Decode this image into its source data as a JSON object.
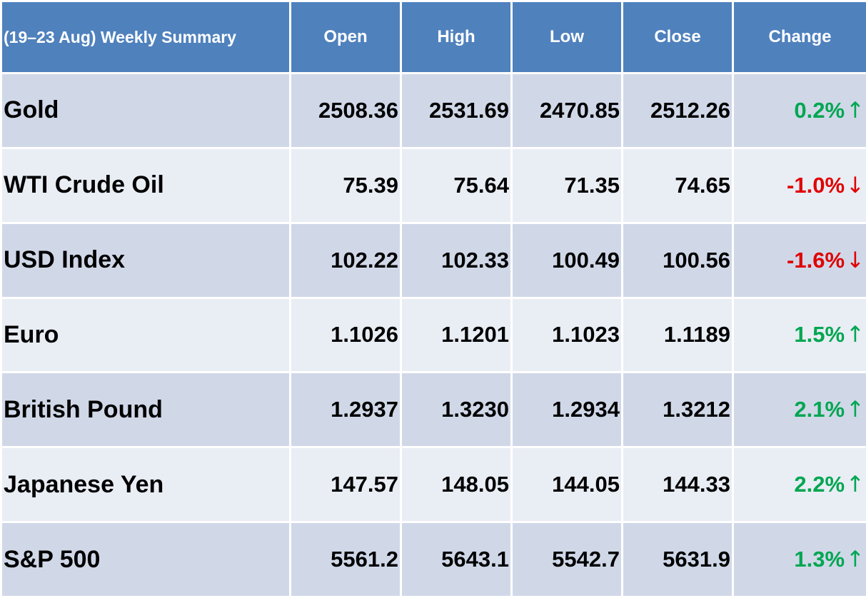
{
  "chart_data": {
    "type": "table",
    "headers": [
      "(19–23  Aug) Weekly Summary",
      "Open",
      "High",
      "Low",
      "Close",
      "Change"
    ],
    "rows": [
      {
        "name": "Gold",
        "open": "2508.36",
        "high": "2531.69",
        "low": "2470.85",
        "close": "2512.26",
        "change": "0.2%",
        "direction": "up"
      },
      {
        "name": "WTI Crude Oil",
        "open": "75.39",
        "high": "75.64",
        "low": "71.35",
        "close": "74.65",
        "change": "-1.0%",
        "direction": "down"
      },
      {
        "name": "USD Index",
        "open": "102.22",
        "high": "102.33",
        "low": "100.49",
        "close": "100.56",
        "change": "-1.6%",
        "direction": "down"
      },
      {
        "name": "Euro",
        "open": "1.1026",
        "high": "1.1201",
        "low": "1.1023",
        "close": "1.1189",
        "change": "1.5%",
        "direction": "up"
      },
      {
        "name": "British Pound",
        "open": "1.2937",
        "high": "1.3230",
        "low": "1.2934",
        "close": "1.3212",
        "change": "2.1%",
        "direction": "up"
      },
      {
        "name": "Japanese Yen",
        "open": "147.57",
        "high": "148.05",
        "low": "144.05",
        "close": "144.33",
        "change": "2.2%",
        "direction": "up"
      },
      {
        "name": "S&P 500",
        "open": "5561.2",
        "high": "5643.1",
        "low": "5542.7",
        "close": "5631.9",
        "change": "1.3%",
        "direction": "up"
      }
    ]
  },
  "colors": {
    "header_bg": "#4f81bd",
    "row_dark": "#d0d8e8",
    "row_light": "#e9edf4",
    "up": "#00a651",
    "down": "#e00000"
  },
  "icons": {
    "up": "arrow-up-icon",
    "down": "arrow-down-icon"
  }
}
